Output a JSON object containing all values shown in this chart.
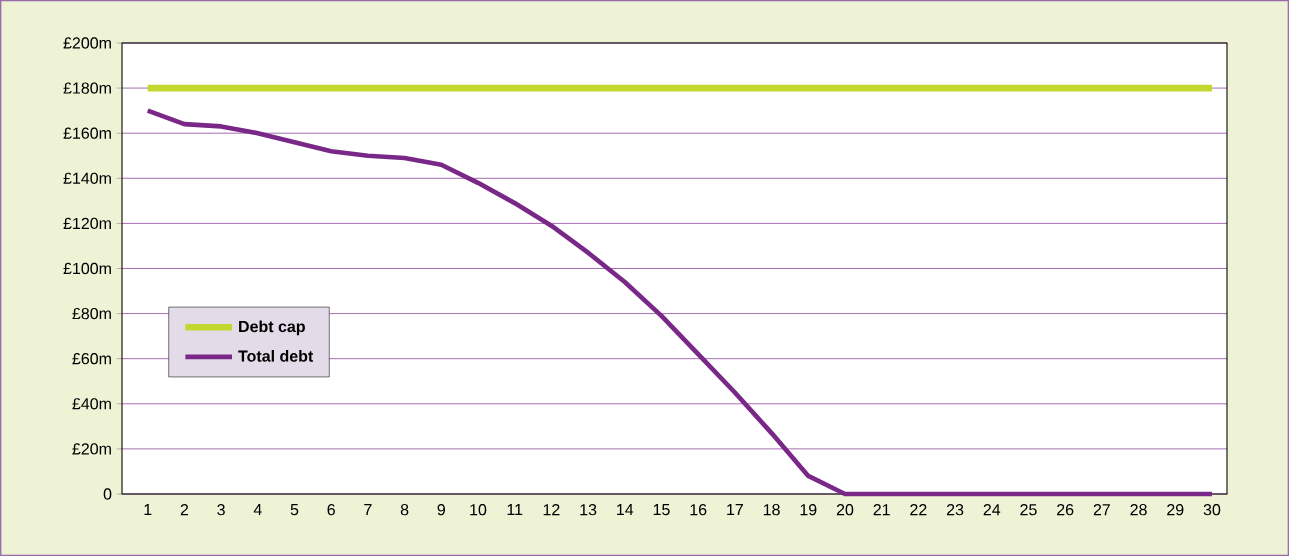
{
  "chart_data": {
    "type": "line",
    "categories": [
      "1",
      "2",
      "3",
      "4",
      "5",
      "6",
      "7",
      "8",
      "9",
      "10",
      "11",
      "12",
      "13",
      "14",
      "15",
      "16",
      "17",
      "18",
      "19",
      "20",
      "21",
      "22",
      "23",
      "24",
      "25",
      "26",
      "27",
      "28",
      "29",
      "30"
    ],
    "series": [
      {
        "name": "Debt cap",
        "color": "#c3d82e",
        "values": [
          180,
          180,
          180,
          180,
          180,
          180,
          180,
          180,
          180,
          180,
          180,
          180,
          180,
          180,
          180,
          180,
          180,
          180,
          180,
          180,
          180,
          180,
          180,
          180,
          180,
          180,
          180,
          180,
          180,
          180
        ]
      },
      {
        "name": "Total debt",
        "color": "#7a2888",
        "values": [
          170,
          164,
          163,
          160,
          156,
          152,
          150,
          149,
          146,
          138,
          129,
          119,
          107,
          94,
          79,
          62,
          45,
          27,
          8,
          0,
          0,
          0,
          0,
          0,
          0,
          0,
          0,
          0,
          0,
          0
        ]
      }
    ],
    "ylim": [
      0,
      200
    ],
    "yticks": [
      {
        "value": 0,
        "label": "0"
      },
      {
        "value": 20,
        "label": "£20m"
      },
      {
        "value": 40,
        "label": "£40m"
      },
      {
        "value": 60,
        "label": "£60m"
      },
      {
        "value": 80,
        "label": "£80m"
      },
      {
        "value": 100,
        "label": "£100m"
      },
      {
        "value": 120,
        "label": "£120m"
      },
      {
        "value": 140,
        "label": "£140m"
      },
      {
        "value": 160,
        "label": "£160m"
      },
      {
        "value": 180,
        "label": "£180m"
      },
      {
        "value": 200,
        "label": "£200m"
      }
    ],
    "grid": "y",
    "legend": "bottom left",
    "marker": "none",
    "line_style": "solid"
  }
}
